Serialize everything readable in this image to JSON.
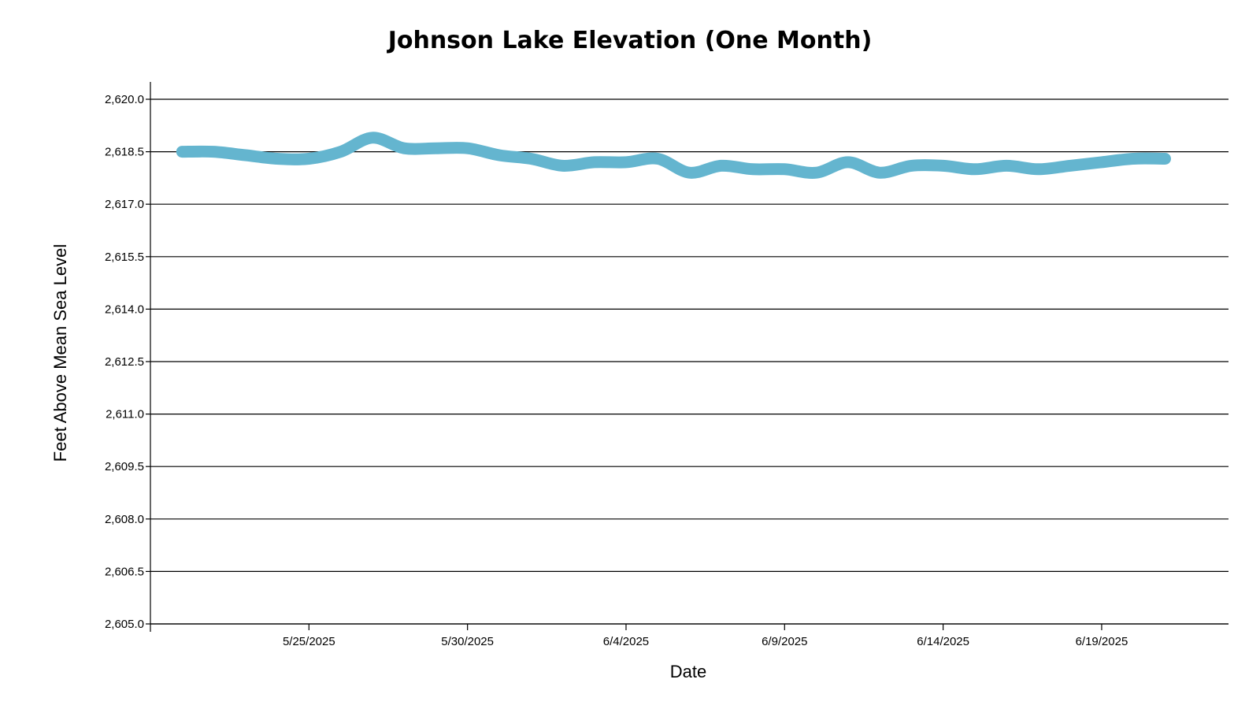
{
  "chart_data": {
    "type": "line",
    "title": "Johnson Lake Elevation (One Month)",
    "xlabel": "Date",
    "ylabel": "Feet Above Mean Sea Level",
    "x_ticks": [
      "5/25/2025",
      "5/30/2025",
      "6/4/2025",
      "6/9/2025",
      "6/14/2025",
      "6/19/2025"
    ],
    "y_ticks": [
      "2,605.0",
      "2,606.5",
      "2,608.0",
      "2,609.5",
      "2,611.0",
      "2,612.5",
      "2,614.0",
      "2,615.5",
      "2,617.0",
      "2,618.5",
      "2,620.0"
    ],
    "ylim": [
      2605.0,
      2620.0
    ],
    "xlim": [
      "5/20/2025",
      "6/23/2025"
    ],
    "grid": true,
    "series_color": "#64b5cf",
    "series": [
      {
        "x": [
          "5/21/2025",
          "5/22/2025",
          "5/23/2025",
          "5/24/2025",
          "5/25/2025",
          "5/26/2025",
          "5/27/2025",
          "5/28/2025",
          "5/29/2025",
          "5/30/2025",
          "5/31/2025",
          "6/1/2025",
          "6/2/2025",
          "6/3/2025",
          "6/4/2025",
          "6/5/2025",
          "6/6/2025",
          "6/7/2025",
          "6/8/2025",
          "6/9/2025",
          "6/10/2025",
          "6/11/2025",
          "6/12/2025",
          "6/13/2025",
          "6/14/2025",
          "6/15/2025",
          "6/16/2025",
          "6/17/2025",
          "6/18/2025",
          "6/19/2025",
          "6/20/2025",
          "6/21/2025"
        ],
        "values": [
          2618.5,
          2618.5,
          2618.4,
          2618.3,
          2618.3,
          2618.5,
          2618.9,
          2618.6,
          2618.6,
          2618.6,
          2618.4,
          2618.3,
          2618.1,
          2618.2,
          2618.2,
          2618.3,
          2617.9,
          2618.1,
          2618.0,
          2618.0,
          2617.9,
          2618.2,
          2617.9,
          2618.1,
          2618.1,
          2618.0,
          2618.1,
          2618.0,
          2618.1,
          2618.2,
          2618.3,
          2618.3
        ]
      }
    ]
  }
}
